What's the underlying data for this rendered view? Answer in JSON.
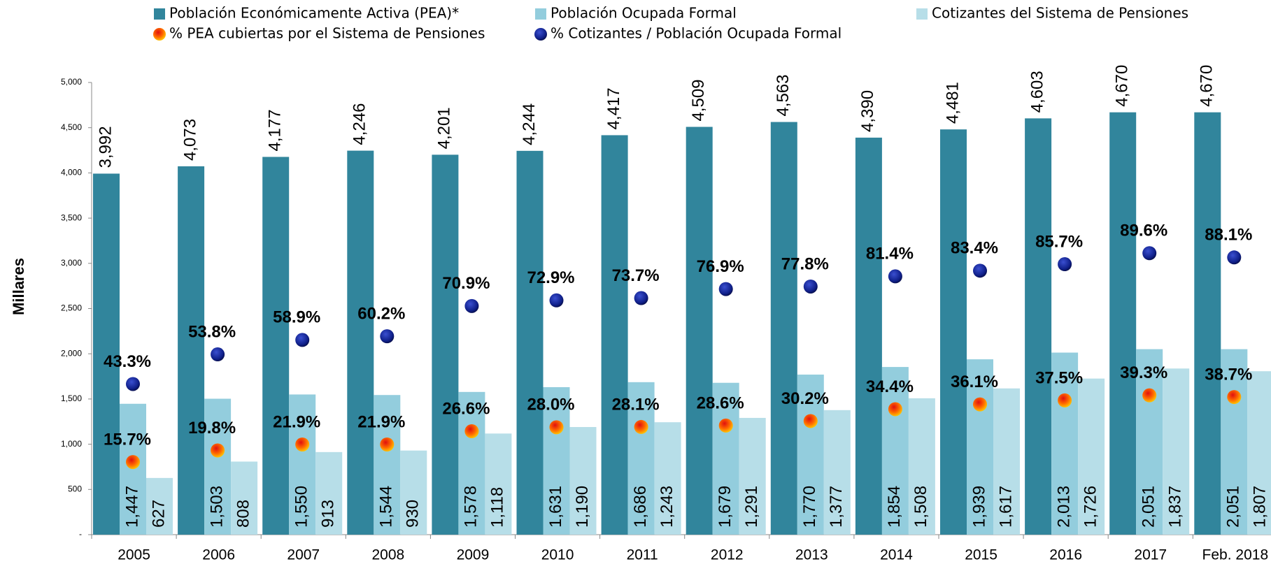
{
  "chart_data": {
    "type": "bar",
    "y_label": "Millares",
    "categories": [
      "2005",
      "2006",
      "2007",
      "2008",
      "2009",
      "2010",
      "2011",
      "2012",
      "2013",
      "2014",
      "2015",
      "2016",
      "2017",
      "Feb. 2018"
    ],
    "ylim": [
      0,
      5000
    ],
    "yticks": [
      {
        "value": 0,
        "label": "-"
      },
      500,
      {
        "value": 1000,
        "label": "1,000"
      },
      {
        "value": 1500,
        "label": "1,500"
      },
      {
        "value": 2000,
        "label": "2,000"
      },
      {
        "value": 2500,
        "label": "2,500"
      },
      {
        "value": 3000,
        "label": "3,000"
      },
      {
        "value": 3500,
        "label": "3,500"
      },
      {
        "value": 4000,
        "label": "4,000"
      },
      {
        "value": 4500,
        "label": "4,500"
      },
      {
        "value": 5000,
        "label": "5,000"
      }
    ],
    "y2lim": [
      -10,
      150
    ],
    "series": [
      {
        "name": "Población Económicamente Activa (PEA)*",
        "type": "bar",
        "color": "#31859c",
        "values": [
          3992,
          4073,
          4177,
          4246,
          4201,
          4244,
          4417,
          4509,
          4563,
          4390,
          4481,
          4603,
          4670,
          4670
        ],
        "value_labels": [
          "3,992",
          "4,073",
          "4,177",
          "4,246",
          "4,201",
          "4,244",
          "4,417",
          "4,509",
          "4,563",
          "4,390",
          "4,481",
          "4,603",
          "4,670",
          "4,670"
        ]
      },
      {
        "name": "Población Ocupada Formal",
        "type": "bar",
        "color": "#93cddd",
        "values": [
          1447,
          1503,
          1550,
          1544,
          1578,
          1631,
          1686,
          1679,
          1770,
          1854,
          1939,
          2013,
          2051,
          2051
        ],
        "value_labels": [
          "1,447",
          "1,503",
          "1,550",
          "1,544",
          "1,578",
          "1,631",
          "1,686",
          "1,679",
          "1,770",
          "1,854",
          "1,939",
          "2,013",
          "2,051",
          "2,051"
        ]
      },
      {
        "name": "Cotizantes del Sistema de Pensiones",
        "type": "bar",
        "color": "#b7dee8",
        "values": [
          627,
          808,
          913,
          930,
          1118,
          1190,
          1243,
          1291,
          1377,
          1508,
          1617,
          1726,
          1837,
          1807
        ],
        "value_labels": [
          "627",
          "808",
          "913",
          "930",
          "1,118",
          "1,190",
          "1,243",
          "1,291",
          "1,377",
          "1,508",
          "1,617",
          "1,726",
          "1,837",
          "1,807"
        ]
      },
      {
        "name": "% PEA cubiertas por el Sistema de Pensiones",
        "type": "scatter",
        "axis": "y2",
        "color": "#ff8c00",
        "values": [
          15.7,
          19.8,
          21.9,
          21.9,
          26.6,
          28.0,
          28.1,
          28.6,
          30.2,
          34.4,
          36.1,
          37.5,
          39.3,
          38.7
        ],
        "value_labels": [
          "15.7%",
          "19.8%",
          "21.9%",
          "21.9%",
          "26.6%",
          "28.0%",
          "28.1%",
          "28.6%",
          "30.2%",
          "34.4%",
          "36.1%",
          "37.5%",
          "39.3%",
          "38.7%"
        ]
      },
      {
        "name": "% Cotizantes / Población Ocupada Formal",
        "type": "scatter",
        "axis": "y2",
        "color": "#1a237e",
        "values": [
          43.3,
          53.8,
          58.9,
          60.2,
          70.9,
          72.9,
          73.7,
          76.9,
          77.8,
          81.4,
          83.4,
          85.7,
          89.6,
          88.1
        ],
        "value_labels": [
          "43.3%",
          "53.8%",
          "58.9%",
          "60.2%",
          "70.9%",
          "72.9%",
          "73.7%",
          "76.9%",
          "77.8%",
          "81.4%",
          "83.4%",
          "85.7%",
          "89.6%",
          "88.1%"
        ]
      }
    ]
  }
}
